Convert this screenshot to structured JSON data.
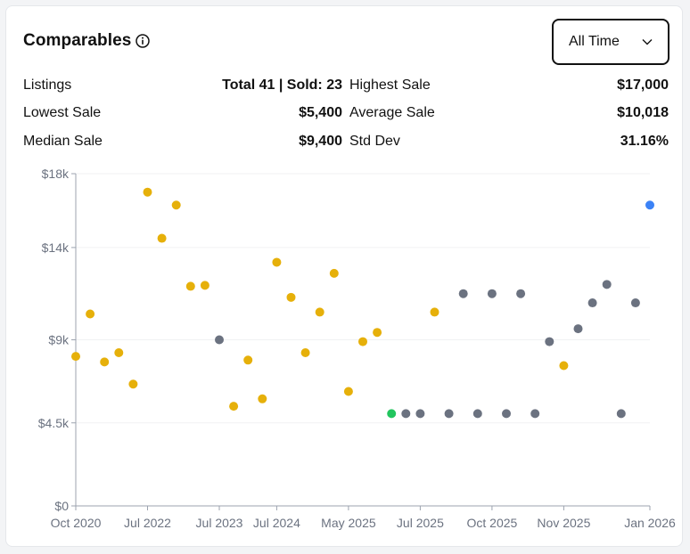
{
  "header": {
    "title": "Comparables",
    "range_select": "All Time"
  },
  "stats": {
    "listings_label": "Listings",
    "listings_value": "Total 41 | Sold: 23",
    "highest_label": "Highest Sale",
    "highest_value": "$17,000",
    "lowest_label": "Lowest Sale",
    "lowest_value": "$5,400",
    "average_label": "Average Sale",
    "average_value": "$10,018",
    "median_label": "Median Sale",
    "median_value": "$9,400",
    "stddev_label": "Std Dev",
    "stddev_value": "31.16%"
  },
  "colors": {
    "sold": "#e6b00a",
    "listed": "#6b7280",
    "highlight_green": "#22c55e",
    "highlight_blue": "#3b82f6"
  },
  "chart_data": {
    "type": "scatter",
    "ylim": [
      0,
      18000
    ],
    "y_ticks": [
      {
        "value": 0,
        "label": "$0"
      },
      {
        "value": 4500,
        "label": "$4.5k"
      },
      {
        "value": 9000,
        "label": "$9k"
      },
      {
        "value": 14000,
        "label": "$14k"
      },
      {
        "value": 18000,
        "label": "$18k"
      }
    ],
    "x_ticks": [
      "Oct 2020",
      "Jul 2022",
      "Jul 2023",
      "Jul 2024",
      "May 2025",
      "Jul 2025",
      "Oct 2025",
      "Nov 2025",
      "Jan 2026"
    ],
    "x_tick_index": [
      0,
      5,
      10,
      14,
      19,
      24,
      29,
      34,
      40
    ],
    "num_points": 41,
    "points": [
      {
        "i": 0,
        "y": 8100,
        "status": "sold"
      },
      {
        "i": 1,
        "y": 10400,
        "status": "sold"
      },
      {
        "i": 2,
        "y": 7800,
        "status": "sold"
      },
      {
        "i": 3,
        "y": 8300,
        "status": "sold"
      },
      {
        "i": 4,
        "y": 6600,
        "status": "sold"
      },
      {
        "i": 5,
        "y": 17000,
        "status": "sold"
      },
      {
        "i": 6,
        "y": 14500,
        "status": "sold"
      },
      {
        "i": 7,
        "y": 16300,
        "status": "sold"
      },
      {
        "i": 8,
        "y": 11900,
        "status": "sold"
      },
      {
        "i": 9,
        "y": 11950,
        "status": "sold"
      },
      {
        "i": 10,
        "y": 9000,
        "status": "listed"
      },
      {
        "i": 11,
        "y": 5400,
        "status": "sold"
      },
      {
        "i": 12,
        "y": 7900,
        "status": "sold"
      },
      {
        "i": 13,
        "y": 5800,
        "status": "sold"
      },
      {
        "i": 14,
        "y": 13200,
        "status": "sold"
      },
      {
        "i": 15,
        "y": 11300,
        "status": "sold"
      },
      {
        "i": 16,
        "y": 8300,
        "status": "sold"
      },
      {
        "i": 17,
        "y": 10500,
        "status": "sold"
      },
      {
        "i": 18,
        "y": 12600,
        "status": "sold"
      },
      {
        "i": 19,
        "y": 6200,
        "status": "sold"
      },
      {
        "i": 20,
        "y": 8900,
        "status": "sold"
      },
      {
        "i": 21,
        "y": 9400,
        "status": "sold"
      },
      {
        "i": 22,
        "y": 5000,
        "status": "highlight_green"
      },
      {
        "i": 23,
        "y": 5000,
        "status": "listed"
      },
      {
        "i": 24,
        "y": 5000,
        "status": "listed"
      },
      {
        "i": 25,
        "y": 10500,
        "status": "sold"
      },
      {
        "i": 26,
        "y": 5000,
        "status": "listed"
      },
      {
        "i": 27,
        "y": 11500,
        "status": "listed"
      },
      {
        "i": 28,
        "y": 5000,
        "status": "listed"
      },
      {
        "i": 29,
        "y": 11500,
        "status": "listed"
      },
      {
        "i": 30,
        "y": 5000,
        "status": "listed"
      },
      {
        "i": 31,
        "y": 11500,
        "status": "listed"
      },
      {
        "i": 32,
        "y": 5000,
        "status": "listed"
      },
      {
        "i": 33,
        "y": 8900,
        "status": "listed"
      },
      {
        "i": 34,
        "y": 7600,
        "status": "sold"
      },
      {
        "i": 35,
        "y": 9600,
        "status": "listed"
      },
      {
        "i": 36,
        "y": 11000,
        "status": "listed"
      },
      {
        "i": 37,
        "y": 12000,
        "status": "listed"
      },
      {
        "i": 38,
        "y": 5000,
        "status": "listed"
      },
      {
        "i": 39,
        "y": 11000,
        "status": "listed"
      },
      {
        "i": 40,
        "y": 16300,
        "status": "highlight_blue"
      }
    ]
  }
}
